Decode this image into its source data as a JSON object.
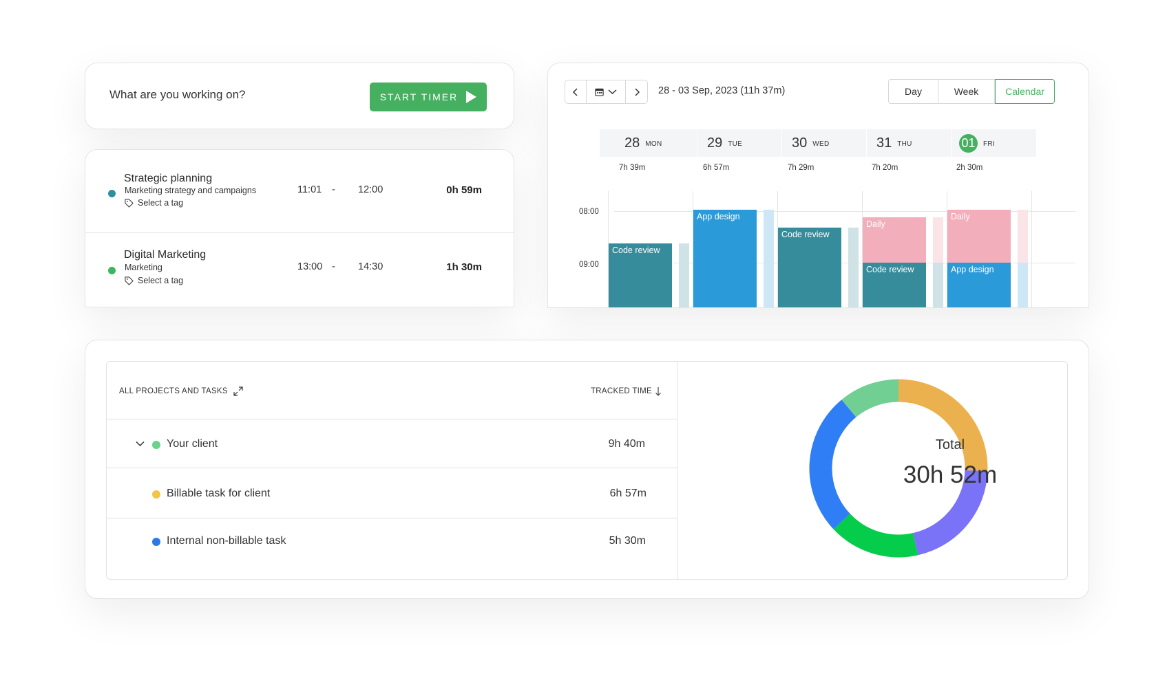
{
  "timer": {
    "prompt": "What are you working on?",
    "start_label": "START TIMER"
  },
  "entries": [
    {
      "title": "Strategic planning",
      "subtitle": "Marketing strategy and campaigns",
      "tag": "Select a tag",
      "start": "11:01",
      "separator": "-",
      "end": "12:00",
      "duration": "0h 59m",
      "color": "#2f8fa0"
    },
    {
      "title": "Digital Marketing",
      "subtitle": "Marketing",
      "tag": "Select a tag",
      "start": "13:00",
      "separator": "-",
      "end": "14:30",
      "duration": "1h 30m",
      "color": "#3db55e"
    }
  ],
  "calendar": {
    "date_range": "28 - 03 Sep, 2023 (11h 37m)",
    "views": [
      "Day",
      "Week",
      "Calendar"
    ],
    "active_view": "Calendar",
    "days": [
      {
        "num": "28",
        "name": "MON",
        "total": "7h 39m"
      },
      {
        "num": "29",
        "name": "TUE",
        "total": "6h 57m"
      },
      {
        "num": "30",
        "name": "WED",
        "total": "7h 29m"
      },
      {
        "num": "31",
        "name": "THU",
        "total": "7h 20m"
      },
      {
        "num": "01",
        "name": "FRI",
        "total": "2h 30m",
        "today": true
      }
    ],
    "times": [
      "08:00",
      "09:00"
    ],
    "events": {
      "mon_code_review": "Code review",
      "tue_app_design": "App design",
      "wed_code_review": "Code review",
      "thu_daily": "Daily",
      "thu_code_review": "Code review",
      "fri_daily": "Daily",
      "fri_app_design": "App design"
    },
    "colors": {
      "teal": "#378c9c",
      "blue": "#2b9ad9",
      "pink": "#f2aebb",
      "accent": "#45b05f"
    }
  },
  "report": {
    "header_left": "ALL PROJECTS AND TASKS",
    "header_right": "TRACKED TIME",
    "rows": [
      {
        "name": "Your client",
        "time": "9h 40m",
        "color": "#6cd18a",
        "expandable": true
      },
      {
        "name": "Billable task for client",
        "time": "6h 57m",
        "color": "#f2c544"
      },
      {
        "name": "Internal non-billable task",
        "time": "5h 30m",
        "color": "#2c7be5"
      }
    ],
    "total_label": "Total",
    "total_value": "30h 52m"
  },
  "chart_data": {
    "type": "pie",
    "variant": "donut",
    "segments": [
      {
        "color": "#ebb14f",
        "fraction": 0.255
      },
      {
        "color": "#7a73f7",
        "fraction": 0.21
      },
      {
        "color": "#05cc4a",
        "fraction": 0.165
      },
      {
        "color": "#2f7ef5",
        "fraction": 0.26
      },
      {
        "color": "#72cf93",
        "fraction": 0.11
      }
    ]
  }
}
